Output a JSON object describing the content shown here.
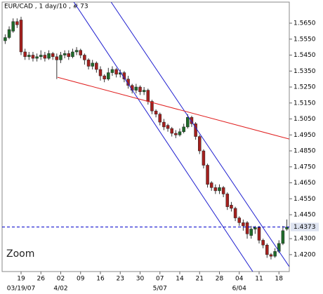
{
  "chart_data": {
    "type": "candlestick",
    "title": "EUR/CAD , 1 day/10 , # 73",
    "categories": [
      null,
      null,
      null,
      null,
      "19",
      null,
      null,
      null,
      null,
      "26",
      null,
      null,
      null,
      null,
      "02",
      null,
      null,
      null,
      null,
      "09",
      null,
      null,
      null,
      null,
      "16",
      null,
      null,
      null,
      null,
      "23",
      null,
      null,
      null,
      null,
      "30",
      null,
      null,
      null,
      null,
      "07",
      null,
      null,
      null,
      null,
      "14",
      null,
      null,
      null,
      null,
      "21",
      null,
      null,
      null,
      null,
      "28",
      null,
      null,
      null,
      null,
      "04",
      null,
      null,
      null,
      null,
      "11",
      null,
      null,
      null,
      null,
      "18",
      null,
      null
    ],
    "category_sublabels": [
      null,
      null,
      null,
      null,
      "03/19/07",
      null,
      null,
      null,
      null,
      null,
      null,
      null,
      null,
      null,
      "4/02",
      null,
      null,
      null,
      null,
      null,
      null,
      null,
      null,
      null,
      null,
      null,
      null,
      null,
      null,
      null,
      null,
      null,
      null,
      null,
      null,
      null,
      null,
      null,
      null,
      "5/07",
      null,
      null,
      null,
      null,
      null,
      null,
      null,
      null,
      null,
      null,
      null,
      null,
      null,
      null,
      null,
      null,
      null,
      null,
      null,
      "6/04",
      null,
      null,
      null,
      null,
      null,
      null,
      null,
      null,
      null,
      null,
      null,
      null
    ],
    "open": [
      1.554,
      1.556,
      1.56,
      1.566,
      1.567,
      1.547,
      1.544,
      1.545,
      1.543,
      1.544,
      1.545,
      1.543,
      1.546,
      1.544,
      1.542,
      1.545,
      1.546,
      1.544,
      1.547,
      1.548,
      1.545,
      1.542,
      1.538,
      1.54,
      1.536,
      1.532,
      1.53,
      1.534,
      1.536,
      1.533,
      1.534,
      1.53,
      1.526,
      1.523,
      1.525,
      1.522,
      1.523,
      1.516,
      1.51,
      1.508,
      1.503,
      1.501,
      1.499,
      1.496,
      1.495,
      1.497,
      1.5,
      1.506,
      1.502,
      1.494,
      1.485,
      1.476,
      1.465,
      1.462,
      1.46,
      1.462,
      1.458,
      1.451,
      1.449,
      1.443,
      1.44,
      1.44,
      1.432,
      1.436,
      1.437,
      1.429,
      1.426,
      1.42,
      1.419,
      1.422,
      1.427,
      1.436
    ],
    "high": [
      1.558,
      1.563,
      1.568,
      1.568,
      1.569,
      1.549,
      1.547,
      1.547,
      1.546,
      1.548,
      1.547,
      1.548,
      1.547,
      1.546,
      1.547,
      1.548,
      1.548,
      1.549,
      1.55,
      1.549,
      1.546,
      1.543,
      1.542,
      1.541,
      1.538,
      1.533,
      1.537,
      1.538,
      1.537,
      1.536,
      1.535,
      1.532,
      1.527,
      1.527,
      1.526,
      1.525,
      1.524,
      1.517,
      1.511,
      1.509,
      1.505,
      1.502,
      1.5,
      1.498,
      1.499,
      1.502,
      1.508,
      1.507,
      1.503,
      1.495,
      1.486,
      1.477,
      1.466,
      1.464,
      1.464,
      1.463,
      1.459,
      1.453,
      1.45,
      1.444,
      1.442,
      1.441,
      1.438,
      1.438,
      1.438,
      1.43,
      1.427,
      1.421,
      1.424,
      1.429,
      1.438,
      1.442
    ],
    "low": [
      1.552,
      1.555,
      1.559,
      1.562,
      1.545,
      1.542,
      1.542,
      1.541,
      1.541,
      1.542,
      1.541,
      1.542,
      1.542,
      1.53,
      1.54,
      1.543,
      1.542,
      1.543,
      1.545,
      1.543,
      1.539,
      1.536,
      1.536,
      1.534,
      1.529,
      1.528,
      1.529,
      1.532,
      1.531,
      1.531,
      1.528,
      1.524,
      1.521,
      1.521,
      1.52,
      1.52,
      1.514,
      1.508,
      1.506,
      1.501,
      1.498,
      1.497,
      1.494,
      1.493,
      1.494,
      1.496,
      1.499,
      1.5,
      1.492,
      1.483,
      1.474,
      1.462,
      1.46,
      1.458,
      1.458,
      1.456,
      1.448,
      1.447,
      1.441,
      1.438,
      1.435,
      1.43,
      1.43,
      1.433,
      1.427,
      1.424,
      1.418,
      1.417,
      1.418,
      1.421,
      1.426,
      1.435
    ],
    "close": [
      1.556,
      1.561,
      1.566,
      1.564,
      1.547,
      1.544,
      1.545,
      1.543,
      1.544,
      1.545,
      1.543,
      1.546,
      1.544,
      1.542,
      1.545,
      1.546,
      1.544,
      1.547,
      1.548,
      1.545,
      1.542,
      1.538,
      1.54,
      1.536,
      1.532,
      1.53,
      1.534,
      1.536,
      1.533,
      1.534,
      1.53,
      1.526,
      1.523,
      1.525,
      1.522,
      1.523,
      1.516,
      1.51,
      1.508,
      1.503,
      1.5,
      1.499,
      1.496,
      1.495,
      1.497,
      1.5,
      1.506,
      1.502,
      1.494,
      1.485,
      1.476,
      1.464,
      1.462,
      1.46,
      1.462,
      1.458,
      1.45,
      1.449,
      1.443,
      1.44,
      1.438,
      1.433,
      1.436,
      1.437,
      1.429,
      1.426,
      1.42,
      1.419,
      1.422,
      1.427,
      1.435,
      1.4373
    ],
    "up_color": "#1f6b2a",
    "down_color": "#a5201e",
    "ylim": [
      1.4094,
      1.5782
    ],
    "yticks": [
      {
        "value": 1.565,
        "label": "1.5650"
      },
      {
        "value": 1.555,
        "label": "1.5550"
      },
      {
        "value": 1.545,
        "label": "1.5450"
      },
      {
        "value": 1.535,
        "label": "1.5350"
      },
      {
        "value": 1.525,
        "label": "1.5250"
      },
      {
        "value": 1.515,
        "label": "1.5150"
      },
      {
        "value": 1.505,
        "label": "1.5050"
      },
      {
        "value": 1.495,
        "label": "1.4950"
      },
      {
        "value": 1.485,
        "label": "1.4850"
      },
      {
        "value": 1.475,
        "label": "1.4750"
      },
      {
        "value": 1.465,
        "label": "1.4650"
      },
      {
        "value": 1.455,
        "label": "1.4550"
      },
      {
        "value": 1.445,
        "label": "1.4450"
      },
      {
        "value": 1.43,
        "label": "1.4300"
      },
      {
        "value": 1.42,
        "label": "1.4200"
      }
    ],
    "last_price": 1.4373,
    "last_price_color": "#0000cc",
    "trend_lines": [
      {
        "color": "#2020d0",
        "x": [
          17.3,
          62.4
        ],
        "y": [
          1.5782,
          1.4094
        ]
      },
      {
        "color": "#2020d0",
        "x": [
          26.7,
          71.6
        ],
        "y": [
          1.5782,
          1.4125
        ]
      },
      {
        "color": "#e02020",
        "x": [
          13.2,
          71.6
        ],
        "y": [
          1.5311,
          1.4924
        ]
      }
    ]
  },
  "controls": {
    "zoom": "Zoom"
  }
}
